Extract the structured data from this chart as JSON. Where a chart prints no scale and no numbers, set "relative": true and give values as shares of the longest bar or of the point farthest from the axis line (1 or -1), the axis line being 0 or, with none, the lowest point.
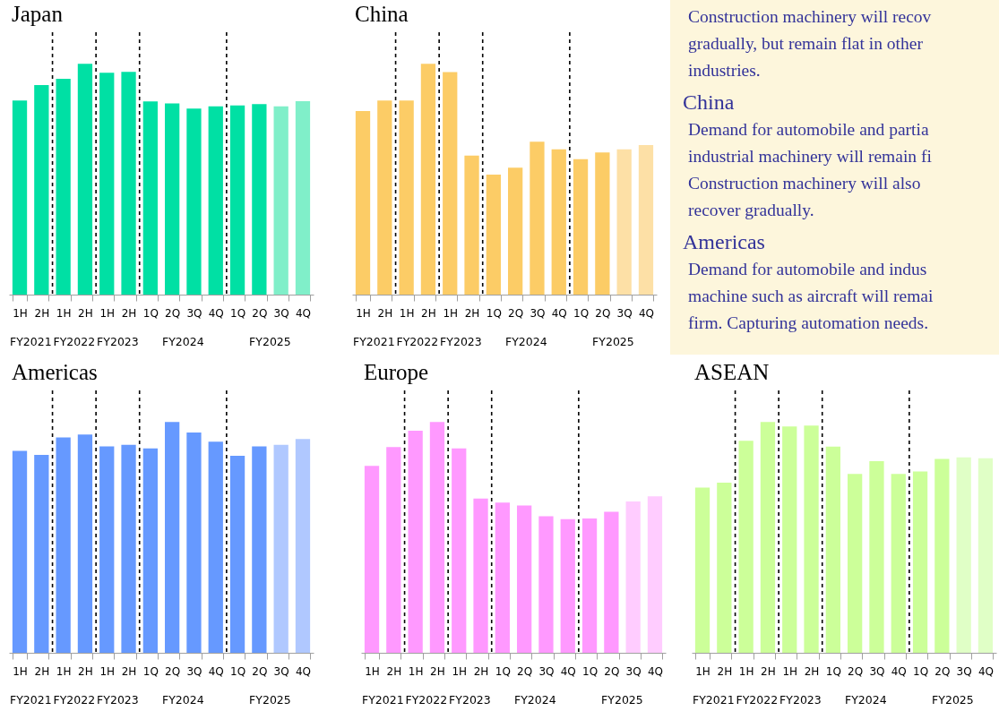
{
  "chart_data": [
    {
      "type": "bar",
      "title": "Japan",
      "relative": true,
      "categories": [
        "1H",
        "2H",
        "1H",
        "2H",
        "1H",
        "2H",
        "1Q",
        "2Q",
        "3Q",
        "4Q",
        "1Q",
        "2Q",
        "3Q",
        "4Q"
      ],
      "values": [
        0.841,
        0.908,
        0.935,
        1,
        0.961,
        0.965,
        0.837,
        0.828,
        0.806,
        0.815,
        0.819,
        0.825,
        0.815,
        0.838
      ],
      "colors": [
        "#00e0a4",
        "#00e0a4",
        "#00e0a4",
        "#00e0a4",
        "#00e0a4",
        "#00e0a4",
        "#00e0a4",
        "#00e0a4",
        "#00e0a4",
        "#00e0a4",
        "#00e0a4",
        "#00e0a4",
        "#80efc9",
        "#80efc9"
      ],
      "annotations": [
        "FY2021",
        "FY2022",
        "FY2023",
        "FY2024",
        "FY2025"
      ]
    },
    {
      "type": "bar",
      "title": "China",
      "relative": true,
      "categories": [
        "1H",
        "2H",
        "1H",
        "2H",
        "1H",
        "2H",
        "1Q",
        "2Q",
        "3Q",
        "4Q",
        "1Q",
        "2Q",
        "3Q",
        "4Q"
      ],
      "values": [
        0.795,
        0.841,
        0.841,
        1,
        0.964,
        0.602,
        0.52,
        0.55,
        0.662,
        0.629,
        0.587,
        0.616,
        0.629,
        0.648
      ],
      "colors": [
        "#fccc66",
        "#fccc66",
        "#fccc66",
        "#fccc66",
        "#fccc66",
        "#fccc66",
        "#fccc66",
        "#fccc66",
        "#fccc66",
        "#fccc66",
        "#fccc66",
        "#fccc66",
        "#fde0a6",
        "#fde0a6"
      ],
      "annotations": [
        "FY2021",
        "FY2022",
        "FY2023",
        "FY2024",
        "FY2025"
      ]
    },
    {
      "type": "other",
      "annotations": [
        "Construction machinery will recov",
        "gradually, but remain flat in other",
        "industries."
      ]
    },
    {
      "type": "other",
      "title": "China",
      "annotations": [
        "Demand for automobile and partia",
        "industrial machinery will remain fi",
        "Construction machinery will also",
        "recover gradually."
      ]
    },
    {
      "type": "other",
      "title": "Americas",
      "annotations": [
        "Demand for automobile and  indus",
        "machine such as aircraft will remai",
        "firm. Capturing automation needs."
      ]
    },
    {
      "type": "bar",
      "title": "Americas",
      "relative": true,
      "categories": [
        "1H",
        "2H",
        "1H",
        "2H",
        "1H",
        "2H",
        "1Q",
        "2Q",
        "3Q",
        "4Q",
        "1Q",
        "2Q",
        "3Q",
        "4Q"
      ],
      "values": [
        0.875,
        0.857,
        0.933,
        0.945,
        0.894,
        0.901,
        0.885,
        1,
        0.954,
        0.914,
        0.853,
        0.894,
        0.901,
        0.926
      ],
      "colors": [
        "#6699ff",
        "#6699ff",
        "#6699ff",
        "#6699ff",
        "#6699ff",
        "#6699ff",
        "#6699ff",
        "#6699ff",
        "#6699ff",
        "#6699ff",
        "#6699ff",
        "#6699ff",
        "#b0c8ff",
        "#b0c8ff"
      ],
      "annotations": [
        "FY2021",
        "FY2022",
        "FY2023",
        "FY2024",
        "FY2025"
      ]
    },
    {
      "type": "bar",
      "title": "Europe",
      "relative": true,
      "categories": [
        "1H",
        "2H",
        "1H",
        "2H",
        "1H",
        "2H",
        "1Q",
        "2Q",
        "3Q",
        "4Q",
        "1Q",
        "2Q",
        "3Q",
        "4Q"
      ],
      "values": [
        0.81,
        0.891,
        0.962,
        1,
        0.885,
        0.668,
        0.651,
        0.638,
        0.591,
        0.579,
        0.582,
        0.611,
        0.655,
        0.678
      ],
      "colors": [
        "#ff99ff",
        "#ff99ff",
        "#ff99ff",
        "#ff99ff",
        "#ff99ff",
        "#ff99ff",
        "#ff99ff",
        "#ff99ff",
        "#ff99ff",
        "#ff99ff",
        "#ff99ff",
        "#ff99ff",
        "#ffccff",
        "#ffccff"
      ],
      "annotations": [
        "FY2021",
        "FY2022",
        "FY2023",
        "FY2024",
        "FY2025"
      ]
    },
    {
      "type": "bar",
      "title": "ASEAN",
      "relative": true,
      "categories": [
        "1H",
        "2H",
        "1H",
        "2H",
        "1H",
        "2H",
        "1Q",
        "2Q",
        "3Q",
        "4Q",
        "1Q",
        "2Q",
        "3Q",
        "4Q"
      ],
      "values": [
        0.716,
        0.737,
        0.918,
        1,
        0.98,
        0.984,
        0.893,
        0.775,
        0.83,
        0.775,
        0.785,
        0.84,
        0.846,
        0.843
      ],
      "colors": [
        "#ccff99",
        "#ccff99",
        "#ccff99",
        "#ccff99",
        "#ccff99",
        "#ccff99",
        "#ccff99",
        "#ccff99",
        "#ccff99",
        "#ccff99",
        "#ccff99",
        "#ccff99",
        "#e0ffc6",
        "#e0ffc6"
      ],
      "annotations": [
        "FY2021",
        "FY2022",
        "FY2023",
        "FY2024",
        "FY2025"
      ]
    }
  ]
}
